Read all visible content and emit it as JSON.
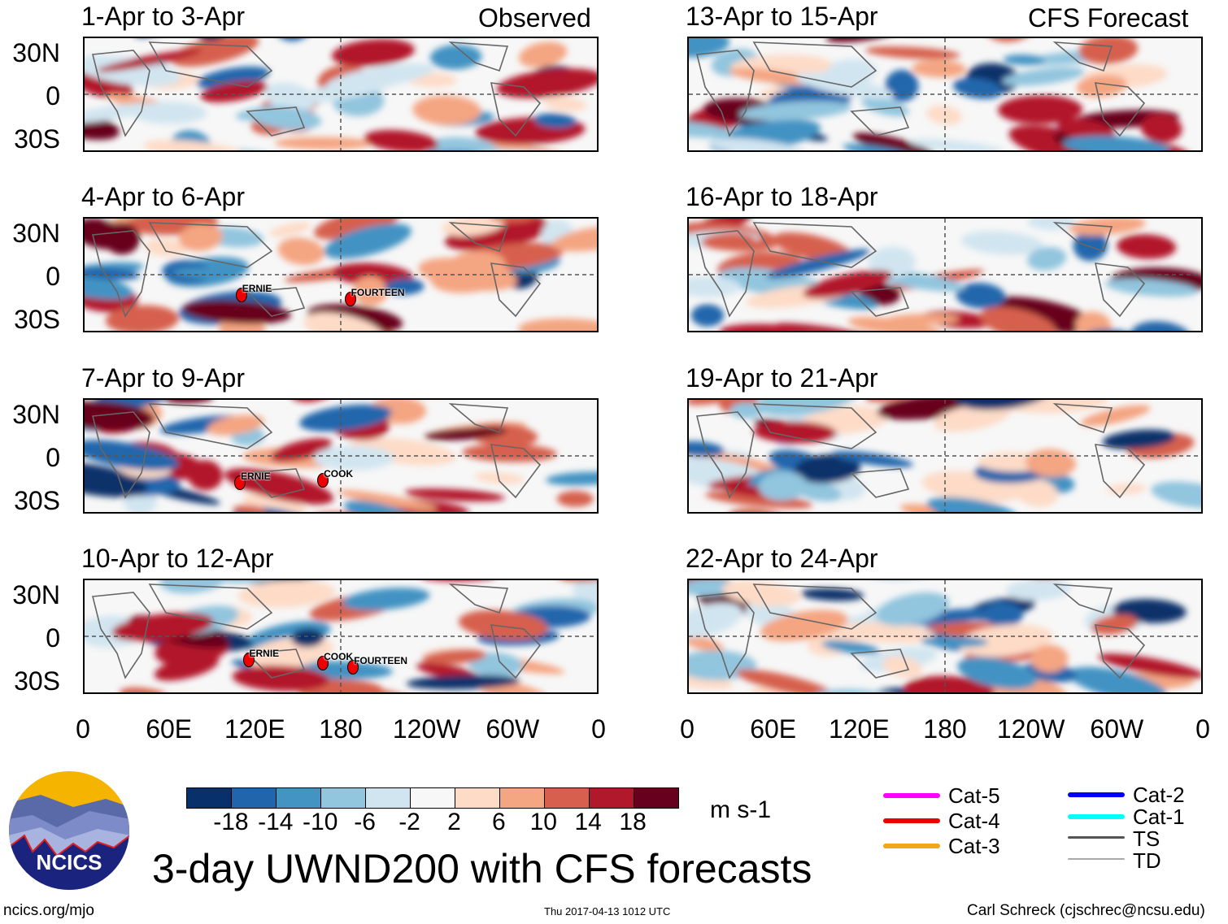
{
  "figure_title": "3-day UWND200 with CFS forecasts",
  "left_column_label": "Observed",
  "right_column_label": "CFS Forecast",
  "panels": [
    {
      "title": "1-Apr to 3-Apr",
      "column": "observed",
      "storms": []
    },
    {
      "title": "4-Apr to 6-Apr",
      "column": "observed",
      "storms": [
        {
          "name": "ERNIE",
          "lon": 110,
          "lat": -18
        },
        {
          "name": "FOURTEEN",
          "lon": 186,
          "lat": -22
        }
      ]
    },
    {
      "title": "7-Apr to 9-Apr",
      "column": "observed",
      "storms": [
        {
          "name": "ERNIE",
          "lon": 109,
          "lat": -24
        },
        {
          "name": "COOK",
          "lon": 167,
          "lat": -22
        }
      ]
    },
    {
      "title": "10-Apr to 12-Apr",
      "column": "observed",
      "storms": [
        {
          "name": "ERNIE",
          "lon": 115,
          "lat": -21
        },
        {
          "name": "COOK",
          "lon": 167,
          "lat": -24
        },
        {
          "name": "FOURTEEN",
          "lon": 188,
          "lat": -28
        }
      ]
    },
    {
      "title": "13-Apr to 15-Apr",
      "column": "forecast",
      "storms": []
    },
    {
      "title": "16-Apr to 18-Apr",
      "column": "forecast",
      "storms": []
    },
    {
      "title": "19-Apr to 21-Apr",
      "column": "forecast",
      "storms": []
    },
    {
      "title": "22-Apr to 24-Apr",
      "column": "forecast",
      "storms": []
    }
  ],
  "lat_labels": [
    "30N",
    "0",
    "30S"
  ],
  "lon_labels": [
    "0",
    "60E",
    "120E",
    "180",
    "120W",
    "60W",
    "0"
  ],
  "colorbar": {
    "units": "m s-1",
    "ticks": [
      "-18",
      "-14",
      "-10",
      "-6",
      "-2",
      "2",
      "6",
      "10",
      "14",
      "18"
    ],
    "colors": [
      "#08306b",
      "#2166ac",
      "#4393c3",
      "#92c5de",
      "#d1e5f0",
      "#f7f7f7",
      "#fddbc7",
      "#f4a582",
      "#d6604d",
      "#b2182b",
      "#67001f"
    ]
  },
  "storm_legend": [
    {
      "label": "Cat-5",
      "color": "#ff00ff"
    },
    {
      "label": "Cat-4",
      "color": "#ee0000"
    },
    {
      "label": "Cat-3",
      "color": "#f0a818"
    },
    {
      "label": "Cat-2",
      "color": "#0000ff"
    },
    {
      "label": "Cat-1",
      "color": "#00ffff"
    },
    {
      "label": "TS",
      "color": "#555555"
    },
    {
      "label": "TD",
      "color": "#aaaaaa"
    }
  ],
  "logo_text": "NCICS",
  "footer": {
    "left": "ncics.org/mjo",
    "center": "Thu 2017-04-13 1012 UTC",
    "right": "Carl Schreck (cjschrec@ncsu.edu)"
  }
}
